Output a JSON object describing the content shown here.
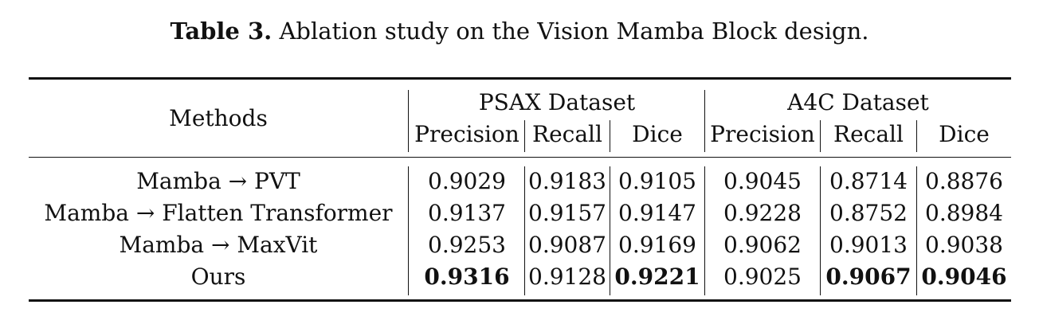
{
  "caption": {
    "label": "Table 3.",
    "text": " Ablation study on the Vision Mamba Block design."
  },
  "header": {
    "methods": "Methods",
    "groups": [
      "PSAX Dataset",
      "A4C Dataset"
    ],
    "metrics": [
      "Precision",
      "Recall",
      "Dice",
      "Precision",
      "Recall",
      "Dice"
    ]
  },
  "rows": [
    {
      "method": "Mamba → PVT",
      "values": [
        "0.9029",
        "0.9183",
        "0.9105",
        "0.9045",
        "0.8714",
        "0.8876"
      ],
      "bold": [
        false,
        false,
        false,
        false,
        false,
        false
      ]
    },
    {
      "method": "Mamba → Flatten Transformer",
      "values": [
        "0.9137",
        "0.9157",
        "0.9147",
        "0.9228",
        "0.8752",
        "0.8984"
      ],
      "bold": [
        false,
        false,
        false,
        false,
        false,
        false
      ]
    },
    {
      "method": "Mamba → MaxVit",
      "values": [
        "0.9253",
        "0.9087",
        "0.9169",
        "0.9062",
        "0.9013",
        "0.9038"
      ],
      "bold": [
        false,
        false,
        false,
        false,
        false,
        false
      ]
    },
    {
      "method": "Ours",
      "values": [
        "0.9316",
        "0.9128",
        "0.9221",
        "0.9025",
        "0.9067",
        "0.9046"
      ],
      "bold": [
        true,
        false,
        true,
        false,
        true,
        true
      ]
    }
  ]
}
